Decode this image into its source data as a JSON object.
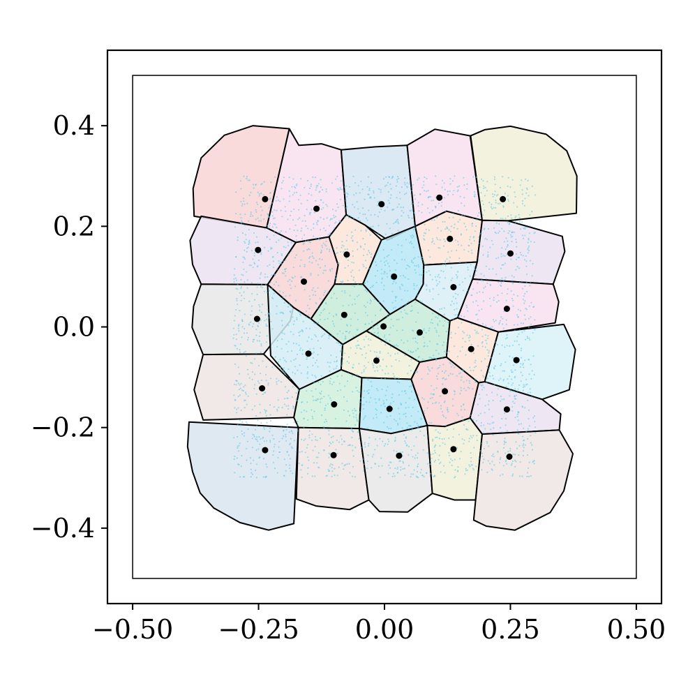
{
  "chart_data": {
    "type": "scatter",
    "title": "",
    "xlabel": "",
    "ylabel": "",
    "xlim": [
      -0.55,
      0.55
    ],
    "ylim": [
      -0.55,
      0.55
    ],
    "grid": false,
    "x_ticks": [
      {
        "value": -0.5,
        "label": "−0.50"
      },
      {
        "value": -0.25,
        "label": "−0.25"
      },
      {
        "value": 0.0,
        "label": "0.00"
      },
      {
        "value": 0.25,
        "label": "0.25"
      },
      {
        "value": 0.5,
        "label": "0.50"
      }
    ],
    "y_ticks": [
      {
        "value": 0.4,
        "label": "0.4"
      },
      {
        "value": 0.2,
        "label": "0.2"
      },
      {
        "value": 0.0,
        "label": "0.0"
      },
      {
        "value": -0.2,
        "label": "−0.2"
      },
      {
        "value": -0.4,
        "label": "−0.4"
      }
    ],
    "domain_box": {
      "x": [
        -0.5,
        0.5
      ],
      "y": [
        -0.5,
        0.5
      ]
    },
    "sample_region": {
      "x": [
        -0.3,
        0.3
      ],
      "y": [
        -0.3,
        0.3
      ],
      "color": "#5bc8e6"
    },
    "sites": [
      {
        "x": -0.237,
        "y": 0.254
      },
      {
        "x": -0.135,
        "y": 0.235
      },
      {
        "x": -0.006,
        "y": 0.244
      },
      {
        "x": 0.109,
        "y": 0.257
      },
      {
        "x": 0.235,
        "y": 0.254
      },
      {
        "x": -0.251,
        "y": 0.153
      },
      {
        "x": -0.16,
        "y": 0.09
      },
      {
        "x": -0.075,
        "y": 0.144
      },
      {
        "x": 0.019,
        "y": 0.1
      },
      {
        "x": 0.13,
        "y": 0.175
      },
      {
        "x": 0.25,
        "y": 0.146
      },
      {
        "x": -0.253,
        "y": 0.016
      },
      {
        "x": -0.08,
        "y": 0.024
      },
      {
        "x": -0.002,
        "y": 0.001
      },
      {
        "x": 0.07,
        "y": -0.011
      },
      {
        "x": 0.137,
        "y": 0.079
      },
      {
        "x": 0.243,
        "y": 0.036
      },
      {
        "x": -0.151,
        "y": -0.053
      },
      {
        "x": -0.016,
        "y": -0.067
      },
      {
        "x": 0.172,
        "y": -0.044
      },
      {
        "x": 0.262,
        "y": -0.066
      },
      {
        "x": -0.243,
        "y": -0.122
      },
      {
        "x": -0.1,
        "y": -0.154
      },
      {
        "x": 0.01,
        "y": -0.163
      },
      {
        "x": 0.12,
        "y": -0.128
      },
      {
        "x": 0.243,
        "y": -0.164
      },
      {
        "x": -0.237,
        "y": -0.245
      },
      {
        "x": -0.101,
        "y": -0.255
      },
      {
        "x": 0.029,
        "y": -0.256
      },
      {
        "x": 0.137,
        "y": -0.243
      },
      {
        "x": 0.248,
        "y": -0.258
      }
    ],
    "cells": [
      {
        "fill": "#f8d5d6",
        "points": [
          [
            -0.378,
            0.22
          ],
          [
            -0.234,
            0.197
          ],
          [
            -0.189,
            0.394
          ],
          [
            -0.261,
            0.4
          ],
          [
            -0.318,
            0.381
          ],
          [
            -0.364,
            0.336
          ],
          [
            -0.38,
            0.275
          ]
        ]
      },
      {
        "fill": "#f8e1f0",
        "points": [
          [
            -0.234,
            0.197
          ],
          [
            -0.176,
            0.168
          ],
          [
            -0.11,
            0.179
          ],
          [
            -0.076,
            0.223
          ],
          [
            -0.086,
            0.352
          ],
          [
            -0.125,
            0.364
          ],
          [
            -0.17,
            0.361
          ],
          [
            -0.189,
            0.394
          ]
        ]
      },
      {
        "fill": "#d4e5f1",
        "points": [
          [
            -0.076,
            0.223
          ],
          [
            -0.038,
            0.202
          ],
          [
            0.006,
            0.173
          ],
          [
            0.061,
            0.2
          ],
          [
            0.045,
            0.361
          ],
          [
            -0.018,
            0.358
          ],
          [
            -0.086,
            0.352
          ]
        ]
      },
      {
        "fill": "#f8e1f0",
        "points": [
          [
            0.061,
            0.2
          ],
          [
            0.123,
            0.23
          ],
          [
            0.194,
            0.212
          ],
          [
            0.17,
            0.38
          ],
          [
            0.1,
            0.393
          ],
          [
            0.045,
            0.361
          ]
        ]
      },
      {
        "fill": "#f1f0d8",
        "points": [
          [
            0.171,
            0.38
          ],
          [
            0.194,
            0.212
          ],
          [
            0.245,
            0.211
          ],
          [
            0.381,
            0.226
          ],
          [
            0.382,
            0.3
          ],
          [
            0.362,
            0.35
          ],
          [
            0.321,
            0.383
          ],
          [
            0.25,
            0.399
          ],
          [
            0.199,
            0.392
          ]
        ]
      },
      {
        "fill": "#ebe3f1",
        "points": [
          [
            -0.364,
            0.22
          ],
          [
            -0.234,
            0.197
          ],
          [
            -0.176,
            0.168
          ],
          [
            -0.232,
            0.084
          ],
          [
            -0.364,
            0.085
          ],
          [
            -0.381,
            0.124
          ],
          [
            -0.386,
            0.172
          ]
        ]
      },
      {
        "fill": "#f8d5d6",
        "points": [
          [
            -0.176,
            0.168
          ],
          [
            -0.11,
            0.179
          ],
          [
            -0.092,
            0.123
          ],
          [
            -0.099,
            0.085
          ],
          [
            -0.146,
            0.016
          ],
          [
            -0.181,
            0.039
          ],
          [
            -0.232,
            0.084
          ]
        ]
      },
      {
        "fill": "#fbe4d7",
        "points": [
          [
            -0.11,
            0.179
          ],
          [
            -0.076,
            0.223
          ],
          [
            -0.038,
            0.202
          ],
          [
            -0.006,
            0.173
          ],
          [
            -0.043,
            0.085
          ],
          [
            -0.099,
            0.085
          ],
          [
            -0.092,
            0.123
          ]
        ]
      },
      {
        "fill": "#b9e8f6",
        "points": [
          [
            -0.006,
            0.173
          ],
          [
            0.061,
            0.2
          ],
          [
            0.078,
            0.123
          ],
          [
            0.077,
            0.085
          ],
          [
            0.061,
            0.055
          ],
          [
            0.011,
            0.025
          ],
          [
            -0.043,
            0.085
          ]
        ]
      },
      {
        "fill": "#fbe4d7",
        "points": [
          [
            0.061,
            0.2
          ],
          [
            0.123,
            0.23
          ],
          [
            0.194,
            0.212
          ],
          [
            0.184,
            0.129
          ],
          [
            0.078,
            0.123
          ]
        ]
      },
      {
        "fill": "#ebe3f1",
        "points": [
          [
            0.194,
            0.212
          ],
          [
            0.245,
            0.211
          ],
          [
            0.353,
            0.18
          ],
          [
            0.358,
            0.15
          ],
          [
            0.335,
            0.085
          ],
          [
            0.175,
            0.095
          ],
          [
            0.184,
            0.129
          ]
        ]
      },
      {
        "fill": "#e8e8e8",
        "points": [
          [
            -0.364,
            0.085
          ],
          [
            -0.232,
            0.084
          ],
          [
            -0.181,
            0.039
          ],
          [
            -0.187,
            0.012
          ],
          [
            -0.24,
            -0.054
          ],
          [
            -0.36,
            -0.055
          ],
          [
            -0.382,
            -0.001
          ],
          [
            -0.379,
            0.041
          ]
        ]
      },
      {
        "fill": "#c8ebd8",
        "points": [
          [
            -0.181,
            0.039
          ],
          [
            -0.146,
            0.016
          ],
          [
            -0.099,
            0.085
          ],
          [
            -0.043,
            0.085
          ],
          [
            0.011,
            0.025
          ],
          [
            -0.036,
            -0.008
          ],
          [
            -0.083,
            -0.035
          ],
          [
            -0.146,
            0.016
          ]
        ]
      },
      {
        "fill": "#c8ebd8",
        "points": [
          [
            0.011,
            0.025
          ],
          [
            0.061,
            0.055
          ],
          [
            0.13,
            0.012
          ],
          [
            0.123,
            -0.06
          ],
          [
            0.07,
            -0.07
          ],
          [
            -0.036,
            -0.008
          ]
        ]
      },
      {
        "fill": "#d9eef5",
        "points": [
          [
            0.078,
            0.123
          ],
          [
            0.184,
            0.129
          ],
          [
            0.175,
            0.095
          ],
          [
            0.145,
            0.018
          ],
          [
            0.13,
            0.012
          ],
          [
            0.061,
            0.055
          ],
          [
            0.077,
            0.085
          ]
        ]
      },
      {
        "fill": "#f8e1f0",
        "points": [
          [
            0.175,
            0.095
          ],
          [
            0.335,
            0.085
          ],
          [
            0.346,
            0.05
          ],
          [
            0.339,
            0.008
          ],
          [
            0.226,
            -0.01
          ],
          [
            0.145,
            0.018
          ]
        ]
      },
      {
        "fill": "#d4ecf5",
        "points": [
          [
            -0.232,
            0.084
          ],
          [
            -0.181,
            0.039
          ],
          [
            -0.146,
            0.016
          ],
          [
            -0.083,
            -0.035
          ],
          [
            -0.086,
            -0.085
          ],
          [
            -0.169,
            -0.124
          ],
          [
            -0.226,
            -0.057
          ]
        ]
      },
      {
        "fill": "#f1f0d8",
        "points": [
          [
            -0.083,
            -0.035
          ],
          [
            -0.036,
            -0.008
          ],
          [
            0.07,
            -0.07
          ],
          [
            0.053,
            -0.104
          ],
          [
            -0.045,
            -0.101
          ],
          [
            -0.086,
            -0.085
          ]
        ]
      },
      {
        "fill": "#fbe4d7",
        "points": [
          [
            0.13,
            0.012
          ],
          [
            0.145,
            0.018
          ],
          [
            0.226,
            -0.01
          ],
          [
            0.199,
            -0.109
          ],
          [
            0.187,
            -0.111
          ],
          [
            0.123,
            -0.06
          ]
        ]
      },
      {
        "fill": "#d9f2f8",
        "points": [
          [
            0.226,
            -0.01
          ],
          [
            0.356,
            0.005
          ],
          [
            0.379,
            -0.045
          ],
          [
            0.367,
            -0.125
          ],
          [
            0.313,
            -0.144
          ],
          [
            0.199,
            -0.109
          ]
        ]
      },
      {
        "fill": "#ede5e3",
        "points": [
          [
            -0.36,
            -0.055
          ],
          [
            -0.24,
            -0.054
          ],
          [
            -0.169,
            -0.124
          ],
          [
            -0.18,
            -0.18
          ],
          [
            -0.36,
            -0.185
          ],
          [
            -0.378,
            -0.125
          ]
        ]
      },
      {
        "fill": "#d1f0dc",
        "points": [
          [
            -0.169,
            -0.124
          ],
          [
            -0.086,
            -0.085
          ],
          [
            -0.045,
            -0.101
          ],
          [
            -0.05,
            -0.202
          ],
          [
            -0.171,
            -0.2
          ],
          [
            -0.18,
            -0.18
          ]
        ]
      },
      {
        "fill": "#b9e8f6",
        "points": [
          [
            -0.045,
            -0.101
          ],
          [
            0.053,
            -0.104
          ],
          [
            0.085,
            -0.196
          ],
          [
            0.013,
            -0.212
          ],
          [
            -0.05,
            -0.202
          ]
        ]
      },
      {
        "fill": "#f8d5d6",
        "points": [
          [
            0.053,
            -0.104
          ],
          [
            0.07,
            -0.07
          ],
          [
            0.123,
            -0.06
          ],
          [
            0.187,
            -0.111
          ],
          [
            0.17,
            -0.181
          ],
          [
            0.12,
            -0.198
          ],
          [
            0.085,
            -0.196
          ]
        ]
      },
      {
        "fill": "#ebe3f1",
        "points": [
          [
            0.187,
            -0.111
          ],
          [
            0.199,
            -0.109
          ],
          [
            0.313,
            -0.144
          ],
          [
            0.35,
            -0.173
          ],
          [
            0.347,
            -0.205
          ],
          [
            0.194,
            -0.213
          ],
          [
            0.17,
            -0.181
          ]
        ]
      },
      {
        "fill": "#d8e5f0",
        "points": [
          [
            -0.388,
            -0.189
          ],
          [
            -0.171,
            -0.2
          ],
          [
            -0.18,
            -0.391
          ],
          [
            -0.23,
            -0.404
          ],
          [
            -0.287,
            -0.389
          ],
          [
            -0.339,
            -0.36
          ],
          [
            -0.366,
            -0.33
          ],
          [
            -0.381,
            -0.288
          ],
          [
            -0.391,
            -0.238
          ]
        ]
      },
      {
        "fill": "#ede5e3",
        "points": [
          [
            -0.171,
            -0.2
          ],
          [
            -0.05,
            -0.202
          ],
          [
            -0.031,
            -0.344
          ],
          [
            -0.069,
            -0.363
          ],
          [
            -0.136,
            -0.356
          ],
          [
            -0.175,
            -0.342
          ]
        ]
      },
      {
        "fill": "#e8e8e8",
        "points": [
          [
            -0.05,
            -0.202
          ],
          [
            0.013,
            -0.212
          ],
          [
            0.085,
            -0.196
          ],
          [
            0.095,
            -0.331
          ],
          [
            0.046,
            -0.368
          ],
          [
            -0.01,
            -0.367
          ],
          [
            -0.031,
            -0.344
          ]
        ]
      },
      {
        "fill": "#f1f0d8",
        "points": [
          [
            0.085,
            -0.196
          ],
          [
            0.12,
            -0.198
          ],
          [
            0.17,
            -0.181
          ],
          [
            0.194,
            -0.213
          ],
          [
            0.181,
            -0.344
          ],
          [
            0.139,
            -0.344
          ],
          [
            0.095,
            -0.331
          ]
        ]
      },
      {
        "fill": "#ede5e3",
        "points": [
          [
            0.194,
            -0.213
          ],
          [
            0.347,
            -0.205
          ],
          [
            0.374,
            -0.252
          ],
          [
            0.356,
            -0.326
          ],
          [
            0.329,
            -0.369
          ],
          [
            0.259,
            -0.404
          ],
          [
            0.202,
            -0.396
          ],
          [
            0.177,
            -0.384
          ]
        ]
      }
    ]
  }
}
